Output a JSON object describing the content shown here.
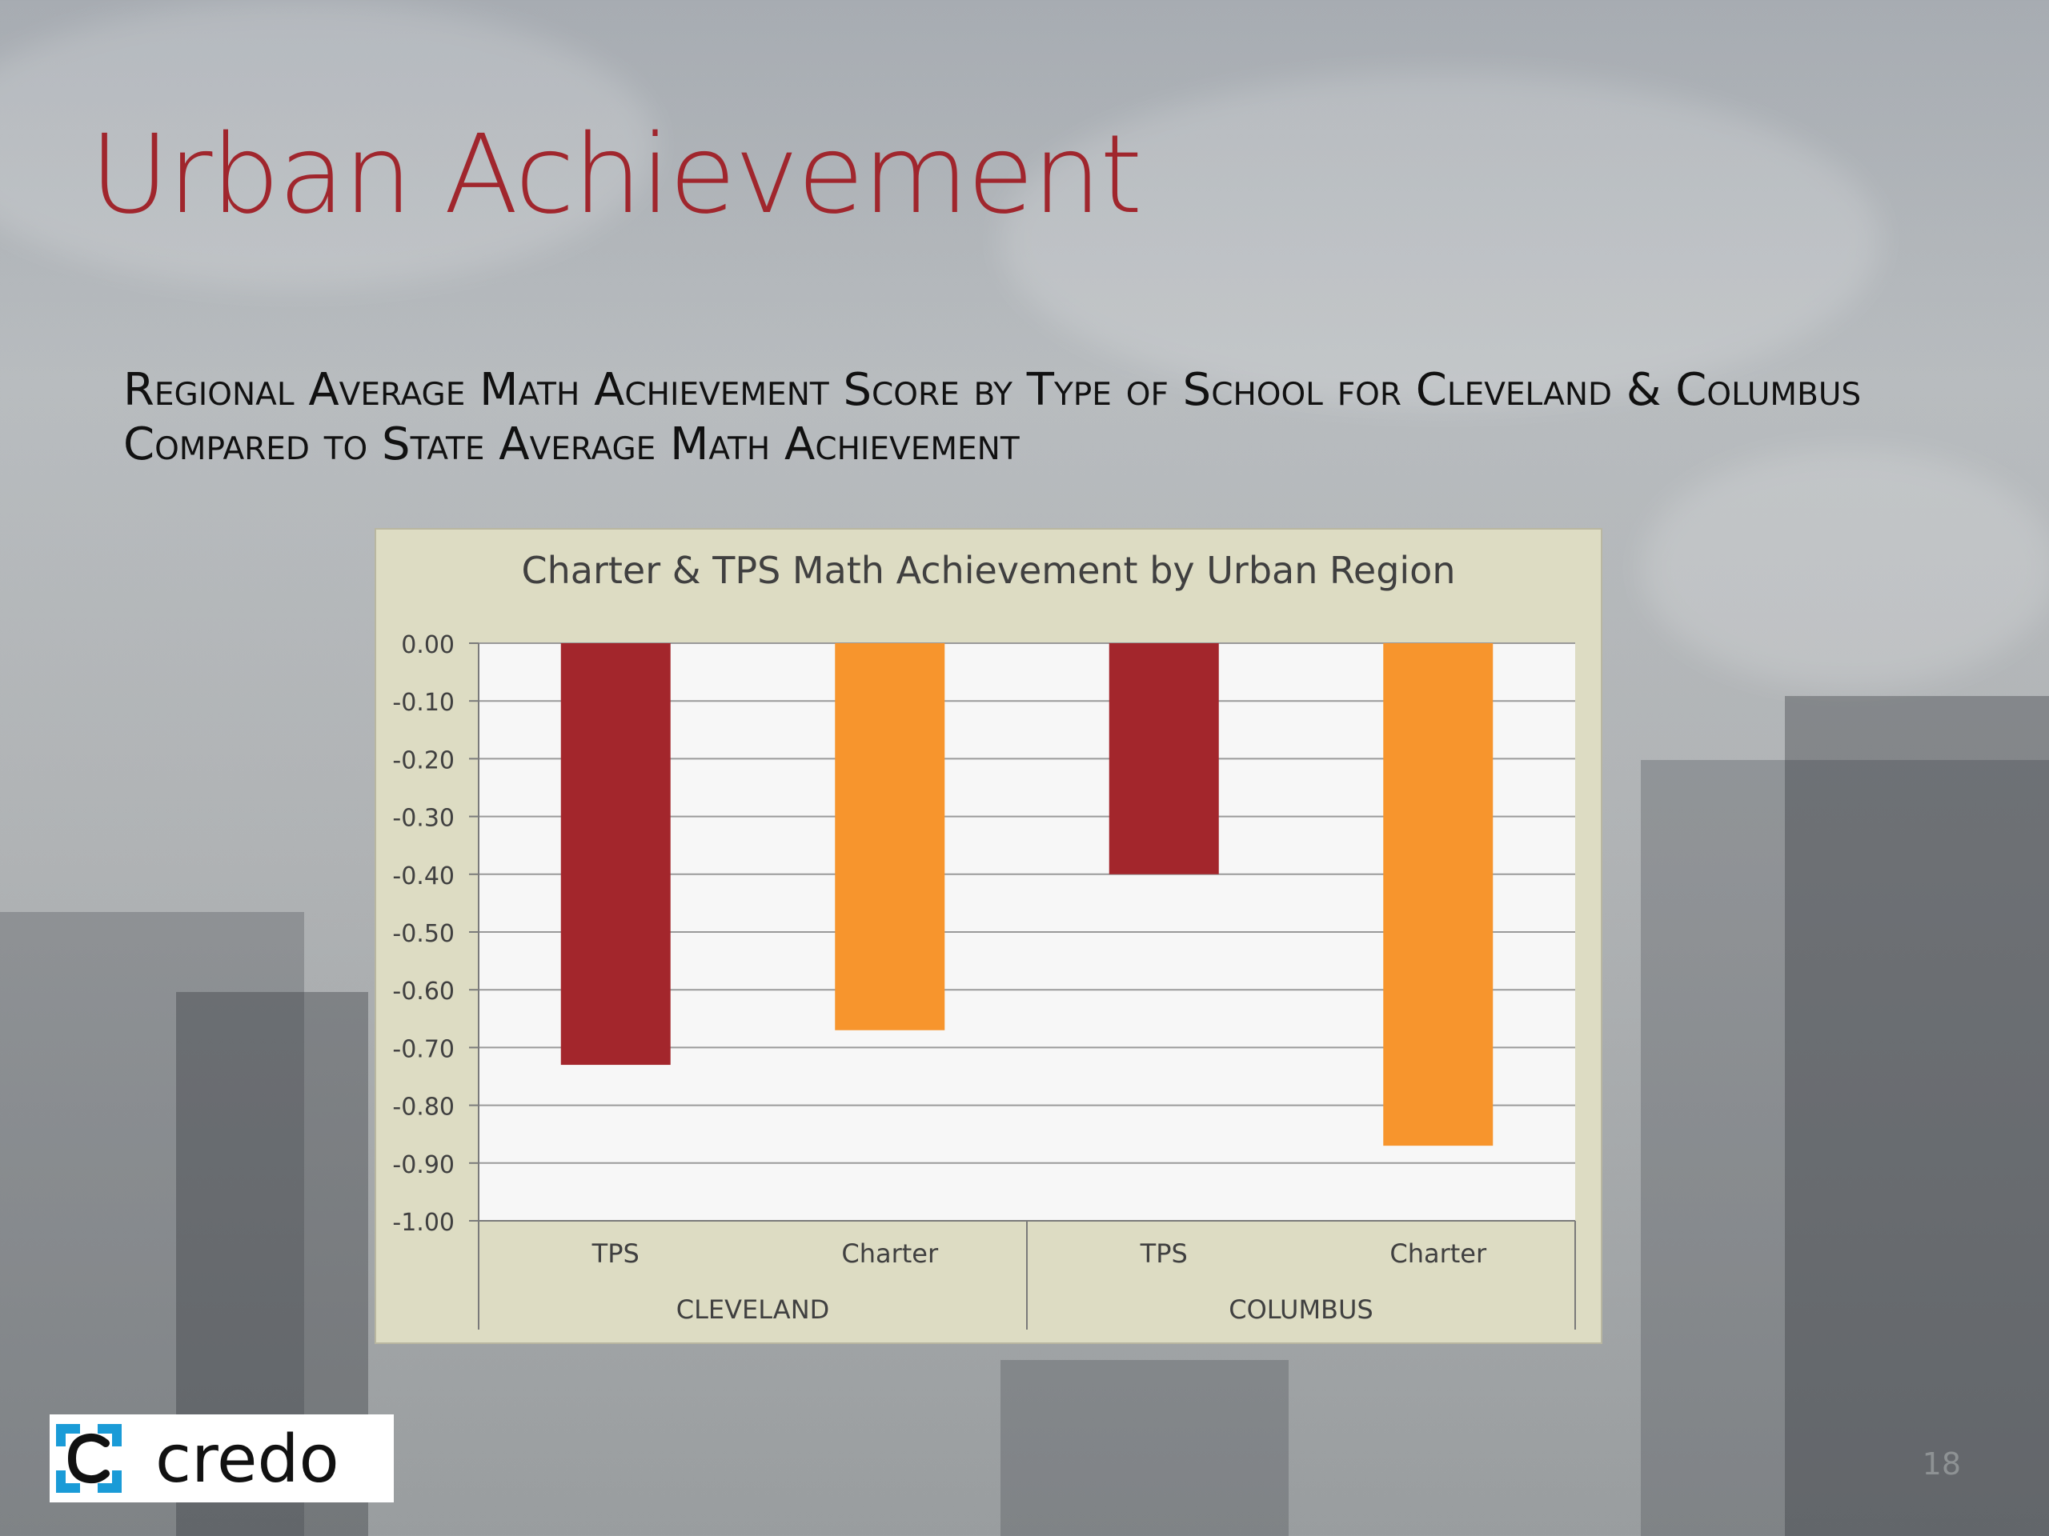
{
  "slide": {
    "title": "Urban Achievement",
    "subtitle": "Regional Average Math Achievement Score by Type of School for Cleveland & Columbus Compared to State Average Math Achievement",
    "page_number": "18"
  },
  "logo": {
    "text": "credo",
    "icon": "credo-bracket-c-icon"
  },
  "colors": {
    "title": "#a0262d",
    "tps": "#a3262c",
    "charter": "#f7952d",
    "chart_bg": "#dddcc3",
    "plot_bg": "#f7f7f7"
  },
  "chart_data": {
    "type": "bar",
    "title": "Charter & TPS Math Achievement by Urban Region",
    "groups": [
      "CLEVELAND",
      "COLUMBUS"
    ],
    "categories": [
      "TPS",
      "Charter",
      "TPS",
      "Charter"
    ],
    "values": [
      -0.73,
      -0.67,
      -0.4,
      -0.87
    ],
    "ylim": [
      -1.0,
      0.0
    ],
    "yticks": [
      "0.00",
      "-0.10",
      "-0.20",
      "-0.30",
      "-0.40",
      "-0.50",
      "-0.60",
      "-0.70",
      "-0.80",
      "-0.90",
      "-1.00"
    ],
    "grid": true,
    "legend": false
  }
}
